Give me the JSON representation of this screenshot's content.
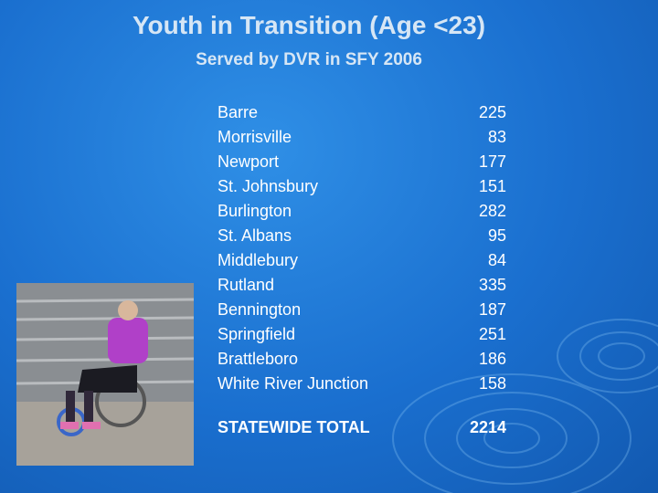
{
  "header": {
    "title": "Youth in Transition (Age <23)",
    "subtitle": "Served by DVR in SFY 2006"
  },
  "table": {
    "rows": [
      [
        "Barre",
        "225"
      ],
      [
        "Morrisville",
        "83"
      ],
      [
        "Newport",
        "177"
      ],
      [
        "St. Johnsbury",
        "151"
      ],
      [
        "Burlington",
        "282"
      ],
      [
        "St. Albans",
        "95"
      ],
      [
        "Middlebury",
        "84"
      ],
      [
        "Rutland",
        "335"
      ],
      [
        "Bennington",
        "187"
      ],
      [
        "Springfield",
        "251"
      ],
      [
        "Brattleboro",
        "186"
      ],
      [
        "White River Junction",
        "158"
      ]
    ],
    "total": [
      "STATEWIDE TOTAL",
      "2214"
    ]
  }
}
